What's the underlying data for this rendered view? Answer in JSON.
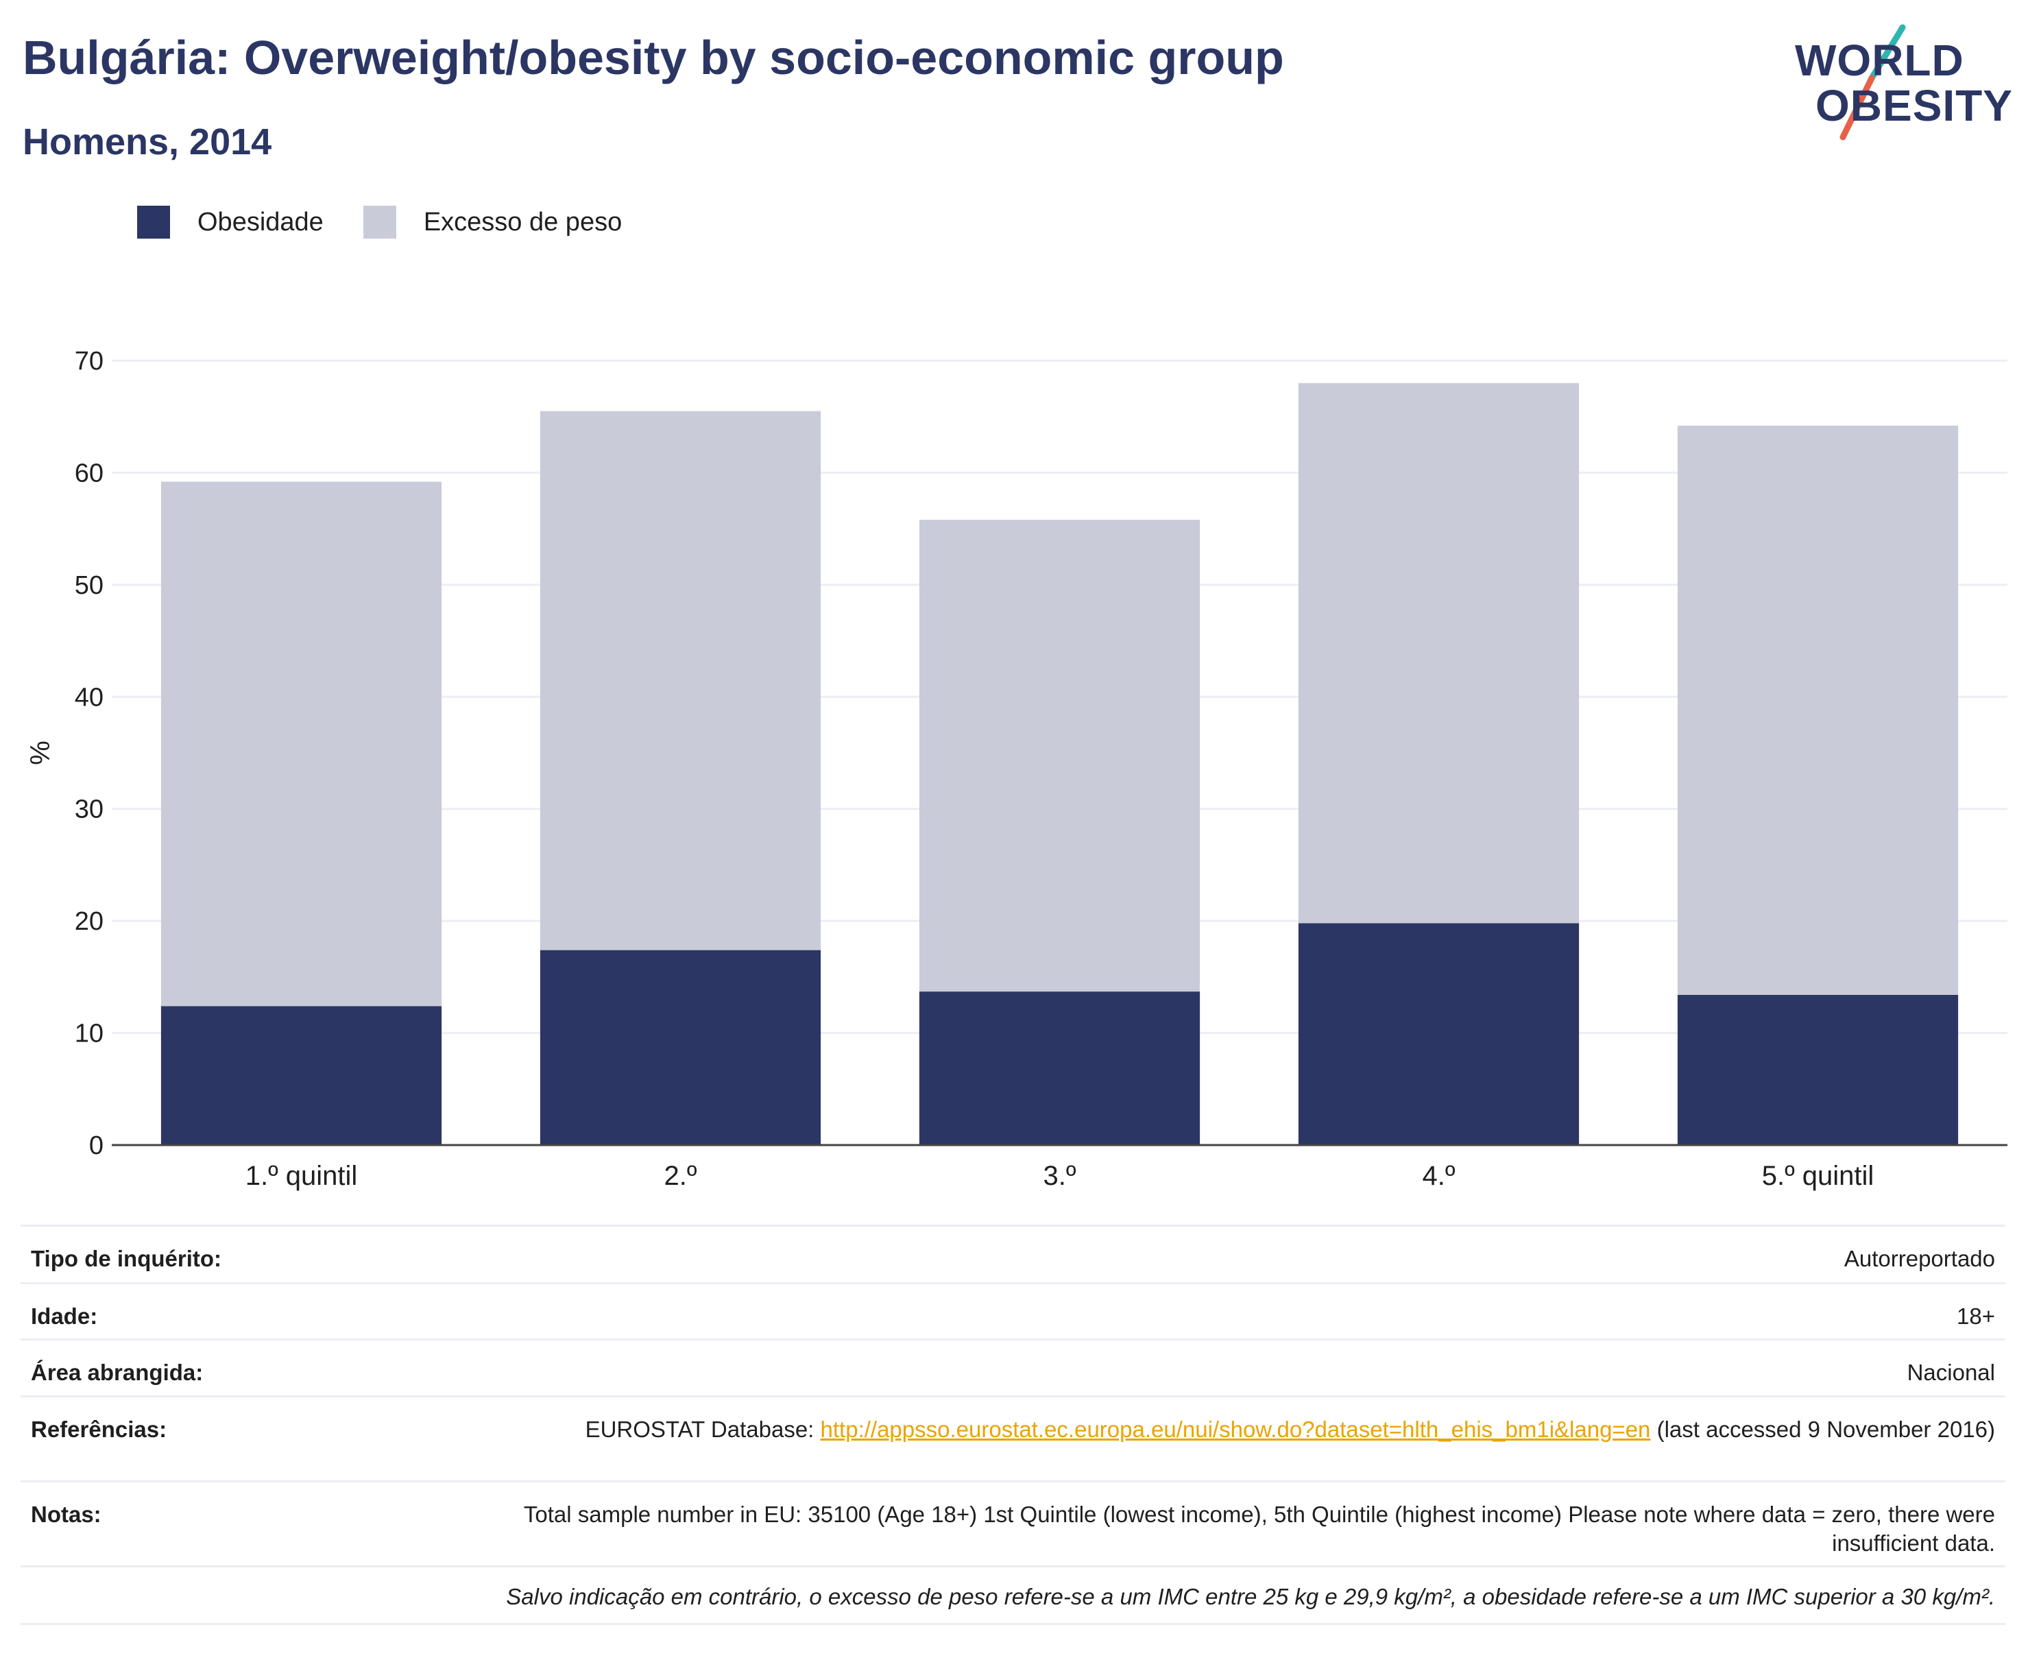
{
  "header": {
    "title": "Bulgária: Overweight/obesity by socio-economic group",
    "subtitle": "Homens, 2014"
  },
  "logo": {
    "line1": "WORLD",
    "line2": "OBESITY",
    "slash_colors": [
      "#2fb5b0",
      "#e8604a"
    ]
  },
  "legend": {
    "items": [
      {
        "label": "Obesidade",
        "color": "#2b3664"
      },
      {
        "label": "Excesso de peso",
        "color": "#c9cbd8"
      }
    ]
  },
  "chart_data": {
    "type": "bar",
    "stacked": true,
    "categories": [
      "1.º quintil",
      "2.º",
      "3.º",
      "4.º",
      "5.º quintil"
    ],
    "series": [
      {
        "name": "Obesidade",
        "color": "#2b3664",
        "values": [
          12.4,
          17.4,
          13.7,
          19.8,
          13.4
        ]
      },
      {
        "name": "Excesso de peso",
        "color": "#c9cbd8",
        "values": [
          46.8,
          48.1,
          42.1,
          48.2,
          50.8
        ]
      }
    ],
    "totals": [
      59.2,
      65.5,
      55.8,
      68.0,
      64.2
    ],
    "ylabel": "%",
    "ylim": [
      0,
      70
    ],
    "yticks": [
      0,
      10,
      20,
      30,
      40,
      50,
      60,
      70
    ],
    "grid": true,
    "legend_position": "top-left"
  },
  "info": {
    "rows": [
      {
        "key": "Tipo de inquérito:",
        "value": "Autorreportado"
      },
      {
        "key": "Idade:",
        "value": "18+"
      },
      {
        "key": "Área abrangida:",
        "value": "Nacional"
      },
      {
        "key": "Referências:",
        "value_prefix": "EUROSTAT Database: ",
        "link": "http://appsso.eurostat.ec.europa.eu/nui/show.do?dataset=hlth_ehis_bm1i&lang=en",
        "value_suffix": " (last accessed 9 November 2016)"
      },
      {
        "key": "Notas:",
        "value": "Total sample number in EU: 35100 (Age 18+) 1st Quintile (lowest income), 5th Quintile (highest income) Please note where data = zero, there were insufficient data."
      }
    ],
    "footnote": "Salvo indicação em contrário, o excesso de peso refere-se a um IMC entre 25 kg e 29,9 kg/m², a obesidade refere-se a um IMC superior a 30 kg/m²."
  }
}
